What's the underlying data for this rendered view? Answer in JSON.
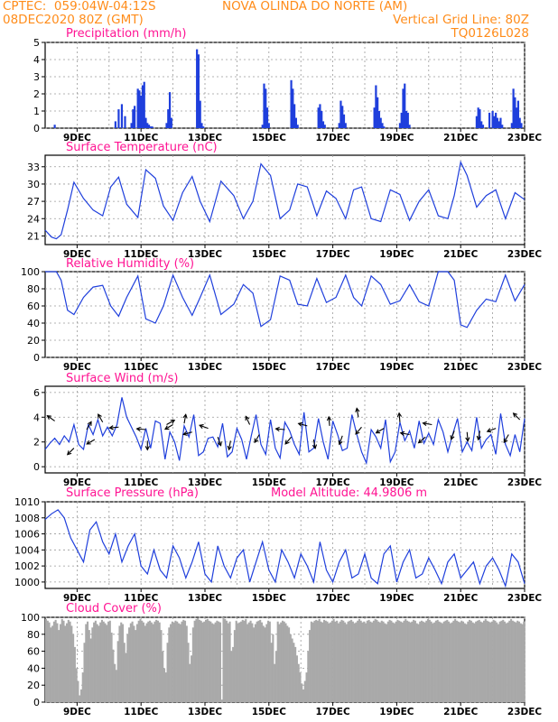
{
  "header": {
    "org_coords": "CPTEC:  059:04W-04:12S",
    "station": "NOVA OLINDA DO NORTE (AM)",
    "run": "08DEC2020 80Z (GMT)",
    "grid_note": "Vertical Grid Line: 80Z",
    "model_code": "TQ0126L028"
  },
  "x_axis": {
    "start": "08DEC2020 00Z",
    "end": "23DEC2020 00Z",
    "tick_labels": [
      "9DEC",
      "11DEC",
      "13DEC",
      "15DEC",
      "17DEC",
      "19DEC",
      "21DEC",
      "23DEC"
    ],
    "tick_days": [
      1,
      3,
      5,
      7,
      9,
      11,
      13,
      15
    ],
    "grid_days": [
      1,
      2,
      3,
      4,
      5,
      6,
      7,
      8,
      9,
      10,
      11,
      12,
      13,
      14,
      15
    ]
  },
  "colors": {
    "title": "#ff1493",
    "header": "#ff8c1a",
    "series": "#1f3fdc",
    "cloud": "#a9a9a9",
    "arrow": "#000000",
    "grid": "#9a9a9a"
  },
  "chart_data": [
    {
      "id": "precip",
      "type": "bar",
      "title": "Precipitation (mm/h)",
      "ylim": [
        0,
        5
      ],
      "yticks": [
        0,
        1,
        2,
        3,
        4,
        5
      ],
      "x": [
        0.3,
        2.2,
        2.3,
        2.4,
        2.5,
        2.7,
        2.75,
        2.8,
        2.9,
        2.95,
        3.0,
        3.05,
        3.1,
        3.15,
        3.2,
        3.25,
        3.3,
        3.35,
        3.8,
        3.85,
        3.9,
        3.95,
        4.75,
        4.8,
        4.85,
        4.9,
        4.95,
        6.8,
        6.85,
        6.9,
        6.95,
        7.0,
        7.7,
        7.75,
        7.8,
        7.85,
        7.9,
        8.55,
        8.6,
        8.65,
        8.7,
        8.75,
        9.2,
        9.25,
        9.3,
        9.35,
        9.4,
        10.3,
        10.35,
        10.4,
        10.45,
        10.5,
        10.55,
        10.6,
        11.1,
        11.15,
        11.2,
        11.25,
        11.3,
        11.35,
        11.4,
        13.5,
        13.55,
        13.6,
        13.65,
        13.7,
        13.9,
        14.0,
        14.05,
        14.1,
        14.15,
        14.2,
        14.25,
        14.3,
        14.6,
        14.65,
        14.7,
        14.75,
        14.8,
        14.85,
        14.9
      ],
      "values": [
        0.2,
        0.4,
        1.1,
        1.4,
        0.7,
        0.3,
        1.1,
        1.3,
        2.3,
        2.2,
        1.9,
        2.5,
        2.7,
        0.6,
        0.3,
        0.2,
        0.1,
        0.1,
        0.3,
        1.1,
        2.1,
        0.6,
        4.6,
        4.3,
        1.6,
        0.3,
        0.1,
        0.2,
        2.6,
        2.3,
        1.2,
        0.3,
        2.8,
        2.3,
        1.4,
        0.6,
        0.2,
        1.2,
        1.4,
        1.0,
        0.4,
        0.2,
        0.3,
        1.6,
        1.3,
        0.8,
        0.3,
        1.2,
        2.5,
        1.8,
        1.0,
        0.6,
        0.3,
        0.1,
        0.3,
        0.9,
        2.3,
        2.6,
        1.0,
        0.9,
        0.2,
        0.7,
        1.2,
        1.1,
        0.4,
        0.2,
        0.9,
        1.0,
        0.7,
        0.9,
        0.6,
        0.4,
        0.6,
        0.2,
        0.3,
        2.3,
        1.8,
        1.2,
        1.6,
        0.6,
        0.3
      ]
    },
    {
      "id": "temp",
      "type": "line",
      "title": "Surface Temperature (nC)",
      "ylim": [
        19.5,
        35
      ],
      "yticks": [
        21,
        24,
        27,
        30,
        33
      ],
      "x": [
        0,
        0.2,
        0.35,
        0.5,
        0.7,
        0.9,
        1.2,
        1.5,
        1.8,
        2.05,
        2.3,
        2.55,
        2.9,
        3.15,
        3.45,
        3.7,
        4.0,
        4.3,
        4.6,
        4.85,
        5.15,
        5.5,
        5.9,
        6.2,
        6.5,
        6.75,
        7.05,
        7.35,
        7.65,
        7.9,
        8.2,
        8.5,
        8.8,
        9.1,
        9.4,
        9.65,
        9.9,
        10.2,
        10.5,
        10.8,
        11.1,
        11.4,
        11.7,
        12.0,
        12.3,
        12.6,
        12.8,
        13.0,
        13.2,
        13.5,
        13.8,
        14.1,
        14.4,
        14.7,
        15.0
      ],
      "values": [
        22,
        20.8,
        20.5,
        21.2,
        25.5,
        30.3,
        27.5,
        25.5,
        24.5,
        29.5,
        31.2,
        26.5,
        24.2,
        32.5,
        31.0,
        26.2,
        23.7,
        28.5,
        31.3,
        27.0,
        23.5,
        30.5,
        28.0,
        24.0,
        27.0,
        33.5,
        31.5,
        24.0,
        25.5,
        30.0,
        29.5,
        24.5,
        28.8,
        27.5,
        24.0,
        29.0,
        29.5,
        24.0,
        23.5,
        29.0,
        28.2,
        23.7,
        27.0,
        29.0,
        24.5,
        24.0,
        28.0,
        33.8,
        31.5,
        26.0,
        28.0,
        29.0,
        24.0,
        28.5,
        27.3
      ]
    },
    {
      "id": "rh",
      "type": "line",
      "title": "Relative Humidity (%)",
      "ylim": [
        0,
        100
      ],
      "yticks": [
        0,
        20,
        40,
        60,
        80,
        100
      ],
      "x": [
        0,
        0.2,
        0.35,
        0.5,
        0.7,
        0.9,
        1.2,
        1.5,
        1.8,
        2.05,
        2.3,
        2.55,
        2.9,
        3.15,
        3.45,
        3.7,
        4.0,
        4.3,
        4.6,
        4.85,
        5.15,
        5.5,
        5.9,
        6.2,
        6.5,
        6.75,
        7.05,
        7.35,
        7.65,
        7.9,
        8.2,
        8.5,
        8.8,
        9.1,
        9.4,
        9.65,
        9.9,
        10.2,
        10.5,
        10.8,
        11.1,
        11.4,
        11.7,
        12.0,
        12.3,
        12.6,
        12.8,
        13.0,
        13.2,
        13.5,
        13.8,
        14.1,
        14.4,
        14.7,
        15.0
      ],
      "values": [
        100,
        100,
        100,
        90,
        55,
        50,
        70,
        82,
        84,
        60,
        48,
        70,
        95,
        45,
        40,
        60,
        96,
        70,
        49,
        70,
        96,
        50,
        62,
        85,
        75,
        36,
        44,
        95,
        90,
        62,
        60,
        92,
        64,
        70,
        96,
        70,
        60,
        95,
        85,
        62,
        66,
        85,
        65,
        60,
        100,
        100,
        90,
        38,
        35,
        55,
        68,
        65,
        96,
        66,
        85
      ]
    },
    {
      "id": "wind",
      "type": "line",
      "title": "Surface Wind (m/s)",
      "ylim": [
        -0.5,
        6.5
      ],
      "yticks": [
        0,
        2,
        4,
        6
      ],
      "x": [
        0,
        0.15,
        0.3,
        0.45,
        0.6,
        0.75,
        0.9,
        1.05,
        1.2,
        1.35,
        1.5,
        1.65,
        1.8,
        1.95,
        2.1,
        2.25,
        2.4,
        2.55,
        2.7,
        2.85,
        3.0,
        3.15,
        3.3,
        3.45,
        3.6,
        3.75,
        3.9,
        4.05,
        4.2,
        4.35,
        4.5,
        4.65,
        4.8,
        4.95,
        5.1,
        5.25,
        5.4,
        5.55,
        5.7,
        5.85,
        6.0,
        6.15,
        6.3,
        6.45,
        6.6,
        6.75,
        6.9,
        7.05,
        7.2,
        7.35,
        7.5,
        7.65,
        7.8,
        7.95,
        8.1,
        8.25,
        8.4,
        8.55,
        8.7,
        8.85,
        9.0,
        9.15,
        9.3,
        9.45,
        9.6,
        9.75,
        9.9,
        10.05,
        10.2,
        10.35,
        10.5,
        10.65,
        10.8,
        10.95,
        11.1,
        11.25,
        11.4,
        11.55,
        11.7,
        11.85,
        12.0,
        12.15,
        12.3,
        12.45,
        12.6,
        12.75,
        12.9,
        13.05,
        13.2,
        13.35,
        13.5,
        13.65,
        13.8,
        13.95,
        14.1,
        14.25,
        14.4,
        14.55,
        14.7,
        14.85,
        15.0
      ],
      "values": [
        1.4,
        1.9,
        2.3,
        1.8,
        2.5,
        2.0,
        3.4,
        1.8,
        1.4,
        3.4,
        2.6,
        3.8,
        2.5,
        3.2,
        2.5,
        3.4,
        5.6,
        4.0,
        3.2,
        2.4,
        1.4,
        3.1,
        1.5,
        3.7,
        3.5,
        0.6,
        2.8,
        2.0,
        0.5,
        3.3,
        2.4,
        4.2,
        0.9,
        1.2,
        2.3,
        2.4,
        1.6,
        3.5,
        0.8,
        1.2,
        3.1,
        2.2,
        0.6,
        2.5,
        4.2,
        1.8,
        1.0,
        3.8,
        1.5,
        0.7,
        3.6,
        2.9,
        1.8,
        1.0,
        4.4,
        1.2,
        1.5,
        3.9,
        2.0,
        0.6,
        3.7,
        2.6,
        1.3,
        1.5,
        4.2,
        2.6,
        1.2,
        0.3,
        3.0,
        2.4,
        1.5,
        3.8,
        0.4,
        1.2,
        3.6,
        2.1,
        2.9,
        1.5,
        3.7,
        1.9,
        2.7,
        1.8,
        3.8,
        2.8,
        1.2,
        2.6,
        3.9,
        1.2,
        2.0,
        1.3,
        4.0,
        1.5,
        2.2,
        2.6,
        1.0,
        4.3,
        1.8,
        0.9,
        2.6,
        1.2,
        3.9
      ],
      "ylabel_ticks": [
        "0",
        "2",
        "4",
        "6"
      ],
      "vectors": [
        {
          "x": 0.3,
          "y": 3.7,
          "dir_deg": 145
        },
        {
          "x": 0.9,
          "y": 1.5,
          "dir_deg": 225
        },
        {
          "x": 1.3,
          "y": 3.0,
          "dir_deg": 60
        },
        {
          "x": 1.55,
          "y": 2.2,
          "dir_deg": 210
        },
        {
          "x": 1.8,
          "y": 3.6,
          "dir_deg": 120
        },
        {
          "x": 2.3,
          "y": 3.2,
          "dir_deg": 185
        },
        {
          "x": 3.15,
          "y": 3.0,
          "dir_deg": 175
        },
        {
          "x": 3.2,
          "y": 2.1,
          "dir_deg": 270
        },
        {
          "x": 3.8,
          "y": 3.4,
          "dir_deg": 30
        },
        {
          "x": 4.0,
          "y": 3.4,
          "dir_deg": 210
        },
        {
          "x": 4.35,
          "y": 3.5,
          "dir_deg": 80
        },
        {
          "x": 4.6,
          "y": 2.8,
          "dir_deg": 195
        },
        {
          "x": 5.1,
          "y": 3.1,
          "dir_deg": 160
        },
        {
          "x": 5.4,
          "y": 2.4,
          "dir_deg": 290
        },
        {
          "x": 5.8,
          "y": 2.1,
          "dir_deg": 260
        },
        {
          "x": 6.4,
          "y": 3.4,
          "dir_deg": 115
        },
        {
          "x": 6.7,
          "y": 2.6,
          "dir_deg": 240
        },
        {
          "x": 7.5,
          "y": 3.0,
          "dir_deg": 175
        },
        {
          "x": 7.7,
          "y": 2.4,
          "dir_deg": 230
        },
        {
          "x": 8.2,
          "y": 3.3,
          "dir_deg": 165
        },
        {
          "x": 8.4,
          "y": 2.2,
          "dir_deg": 280
        },
        {
          "x": 8.9,
          "y": 3.3,
          "dir_deg": 95
        },
        {
          "x": 9.3,
          "y": 2.5,
          "dir_deg": 250
        },
        {
          "x": 9.8,
          "y": 4.0,
          "dir_deg": 100
        },
        {
          "x": 9.9,
          "y": 3.2,
          "dir_deg": 230
        },
        {
          "x": 10.6,
          "y": 3.1,
          "dir_deg": 210
        },
        {
          "x": 11.1,
          "y": 3.6,
          "dir_deg": 95
        },
        {
          "x": 11.4,
          "y": 2.6,
          "dir_deg": 170
        },
        {
          "x": 11.9,
          "y": 2.4,
          "dir_deg": 220
        },
        {
          "x": 12.1,
          "y": 3.4,
          "dir_deg": 170
        },
        {
          "x": 12.8,
          "y": 2.9,
          "dir_deg": 250
        },
        {
          "x": 13.2,
          "y": 2.8,
          "dir_deg": 275
        },
        {
          "x": 13.6,
          "y": 2.9,
          "dir_deg": 260
        },
        {
          "x": 14.1,
          "y": 3.1,
          "dir_deg": 200
        },
        {
          "x": 14.5,
          "y": 2.6,
          "dir_deg": 240
        },
        {
          "x": 14.85,
          "y": 3.8,
          "dir_deg": 135
        }
      ]
    },
    {
      "id": "pres",
      "type": "line",
      "title": "Surface Pressure (hPa)",
      "note": "Model Altitude: 44.9806 m",
      "ylim": [
        999.2,
        1010
      ],
      "yticks": [
        1000,
        1002,
        1004,
        1006,
        1008,
        1010
      ],
      "x": [
        0,
        0.2,
        0.4,
        0.6,
        0.8,
        1.0,
        1.2,
        1.4,
        1.6,
        1.8,
        2.0,
        2.2,
        2.4,
        2.6,
        2.8,
        3.0,
        3.2,
        3.4,
        3.6,
        3.8,
        4.0,
        4.2,
        4.4,
        4.6,
        4.8,
        5.0,
        5.2,
        5.4,
        5.6,
        5.8,
        6.0,
        6.2,
        6.4,
        6.6,
        6.8,
        7.0,
        7.2,
        7.4,
        7.6,
        7.8,
        8.0,
        8.2,
        8.4,
        8.6,
        8.8,
        9.0,
        9.2,
        9.4,
        9.6,
        9.8,
        10.0,
        10.2,
        10.4,
        10.6,
        10.8,
        11.0,
        11.2,
        11.4,
        11.6,
        11.8,
        12.0,
        12.2,
        12.4,
        12.6,
        12.8,
        13.0,
        13.2,
        13.4,
        13.6,
        13.8,
        14.0,
        14.2,
        14.4,
        14.6,
        14.8,
        15.0
      ],
      "values": [
        1007.8,
        1008.5,
        1009.0,
        1008.0,
        1005.5,
        1004.0,
        1002.5,
        1006.5,
        1007.5,
        1005.0,
        1003.5,
        1006.0,
        1002.5,
        1004.5,
        1006.0,
        1002.0,
        1001.0,
        1004.0,
        1001.5,
        1000.5,
        1004.5,
        1003.0,
        1000.5,
        1002.5,
        1005.0,
        1001.0,
        1000.0,
        1004.5,
        1002.0,
        1000.5,
        1003.0,
        1004.0,
        1000.0,
        1002.5,
        1005.0,
        1001.5,
        1000.0,
        1004.0,
        1002.5,
        1000.5,
        1003.5,
        1002.0,
        1000.0,
        1005.0,
        1001.5,
        1000.0,
        1002.5,
        1004.0,
        1000.5,
        1001.0,
        1003.5,
        1000.5,
        999.8,
        1003.5,
        1004.5,
        1000.0,
        1002.5,
        1004.0,
        1000.5,
        1001.0,
        1003.0,
        1001.5,
        999.8,
        1002.5,
        1003.5,
        1000.5,
        1001.5,
        1002.5,
        999.8,
        1002.0,
        1003.0,
        1001.5,
        999.5,
        1003.5,
        1002.5,
        999.8
      ]
    },
    {
      "id": "cloud",
      "type": "bar",
      "title": "Cloud Cover (%)",
      "ylim": [
        0,
        100
      ],
      "yticks": [
        0,
        20,
        40,
        60,
        80,
        100
      ],
      "x_start": 0,
      "x_step": 0.05,
      "values": [
        98,
        96,
        94,
        88,
        90,
        95,
        97,
        93,
        85,
        92,
        98,
        96,
        90,
        93,
        97,
        95,
        90,
        80,
        65,
        40,
        25,
        8,
        15,
        35,
        70,
        92,
        95,
        85,
        75,
        88,
        94,
        96,
        92,
        90,
        94,
        97,
        95,
        93,
        91,
        95,
        96,
        82,
        62,
        45,
        38,
        72,
        90,
        94,
        92,
        70,
        58,
        80,
        88,
        93,
        95,
        90,
        85,
        92,
        96,
        98,
        96,
        94,
        90,
        93,
        95,
        96,
        94,
        92,
        95,
        97,
        96,
        94,
        85,
        60,
        40,
        35,
        70,
        88,
        92,
        95,
        94,
        96,
        95,
        93,
        92,
        95,
        97,
        96,
        90,
        70,
        45,
        55,
        88,
        96,
        98,
        99,
        97,
        96,
        94,
        95,
        97,
        98,
        96,
        95,
        93,
        92,
        94,
        96,
        95,
        94,
        3,
        100,
        98,
        96,
        93,
        95,
        60,
        65,
        85,
        96,
        93,
        94,
        95,
        97,
        96,
        98,
        92,
        94,
        96,
        93,
        88,
        92,
        95,
        96,
        97,
        94,
        90,
        88,
        92,
        96,
        95,
        70,
        80,
        45,
        60,
        95,
        92,
        94,
        96,
        95,
        93,
        90,
        88,
        80,
        75,
        70,
        65,
        55,
        45,
        35,
        22,
        15,
        25,
        35,
        60,
        85,
        95,
        94,
        96,
        97,
        96,
        98,
        95,
        94,
        97,
        96,
        95,
        93,
        94,
        96,
        98,
        95,
        96,
        93,
        95,
        97,
        96,
        94,
        92,
        95,
        96,
        97,
        95,
        93,
        94,
        96,
        98,
        96,
        94,
        95,
        93,
        96,
        97,
        95,
        94,
        96,
        98,
        97,
        95,
        94,
        96,
        95,
        93,
        92,
        95,
        97,
        96,
        94,
        93,
        95,
        97,
        96,
        95,
        94,
        96,
        98,
        96,
        95,
        94,
        95,
        97,
        96,
        93,
        92,
        95,
        96,
        95,
        94,
        96,
        98,
        97,
        95,
        93,
        94,
        96,
        97,
        95,
        94,
        93,
        95,
        96,
        97,
        95,
        93,
        94,
        96,
        98,
        96,
        95,
        94,
        96,
        95,
        93,
        92,
        95,
        97,
        96,
        94,
        93,
        95,
        96,
        97,
        95,
        94,
        96,
        98,
        96,
        95,
        94,
        95,
        97,
        96,
        94,
        92,
        95,
        96,
        97,
        95,
        93,
        94,
        96,
        98,
        96,
        95,
        94,
        96,
        95,
        93,
        92,
        95,
        96
      ]
    }
  ]
}
